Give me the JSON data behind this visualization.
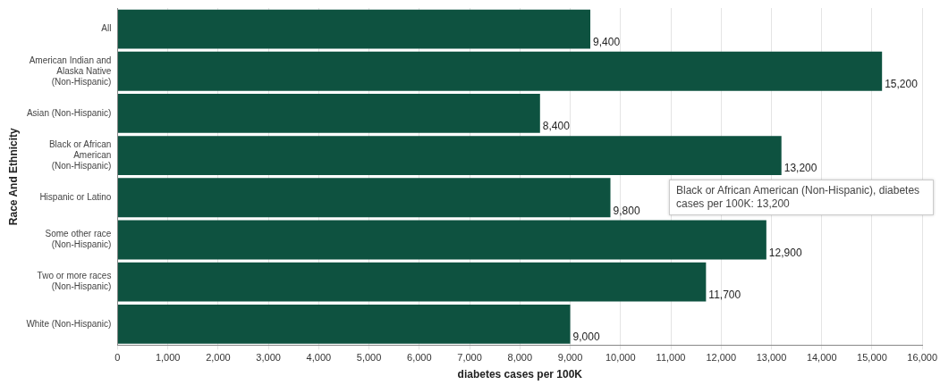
{
  "chart_data": {
    "type": "bar",
    "orientation": "horizontal",
    "categories": [
      "All",
      "American Indian and Alaska Native (Non-Hispanic)",
      "Asian (Non-Hispanic)",
      "Black or African American (Non-Hispanic)",
      "Hispanic or Latino",
      "Some other race (Non-Hispanic)",
      "Two or more races (Non-Hispanic)",
      "White (Non-Hispanic)"
    ],
    "values": [
      9400,
      15200,
      8400,
      13200,
      9800,
      12900,
      11700,
      9000
    ],
    "value_labels": [
      "9,400",
      "15,200",
      "8,400",
      "13,200",
      "9,800",
      "12,900",
      "11,700",
      "9,000"
    ],
    "color": "#0e5240",
    "xlabel": "diabetes cases per 100K",
    "ylabel": "Race And Ethnicity",
    "xlim": [
      0,
      16000
    ],
    "xticks": [
      0,
      {
        "value": 1000,
        "label": "1,000"
      },
      {
        "value": 2000,
        "label": "2,000"
      },
      {
        "value": 3000,
        "label": "3,000"
      },
      {
        "value": 4000,
        "label": "4,000"
      },
      {
        "value": 5000,
        "label": "5,000"
      },
      {
        "value": 6000,
        "label": "6,000"
      },
      {
        "value": 7000,
        "label": "7,000"
      },
      {
        "value": 8000,
        "label": "8,000"
      },
      {
        "value": 9000,
        "label": "9,000"
      },
      {
        "value": 10000,
        "label": "10,000"
      },
      {
        "value": 11000,
        "label": "11,000"
      },
      {
        "value": 12000,
        "label": "12,000"
      },
      {
        "value": 13000,
        "label": "13,000"
      },
      {
        "value": 14000,
        "label": "14,000"
      },
      {
        "value": 15000,
        "label": "15,000"
      },
      {
        "value": 16000,
        "label": "16,000"
      }
    ],
    "grid": "x",
    "annotations": [
      "Black or African American (Non-Hispanic), diabetes cases per 100K: 13,200"
    ]
  }
}
